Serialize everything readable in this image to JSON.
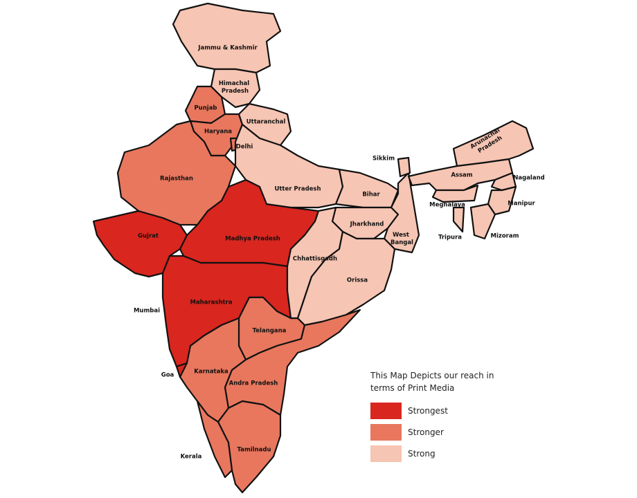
{
  "legend": {
    "title": "This Map Depicts our reach in terms of Print Media",
    "items": [
      {
        "label": "Strongest",
        "color": "#d9261f",
        "regions": [
          "Madhya Pradesh",
          "Gujrat",
          "Maharashtra",
          "Goa"
        ]
      },
      {
        "label": "Stronger",
        "color": "#e8775e",
        "regions": [
          "Punjab",
          "Haryana",
          "Delhi",
          "Rajasthan",
          "Telangana",
          "Karnataka",
          "Andra Pradesh",
          "Tamilnadu",
          "Kerala"
        ]
      },
      {
        "label": "Strong",
        "color": "#f6c5b3",
        "regions": [
          "Jammu & Kashmir",
          "Himachal Pradesh",
          "Uttaranchal",
          "Utter Pradesh",
          "Bihar",
          "Jharkhand",
          "West Bangal",
          "Chhattisgadh",
          "Orissa",
          "Sikkim",
          "Assam",
          "Arunachal Pradesh",
          "Nagaland",
          "Meghalaya",
          "Manipur",
          "Tripura",
          "Mizoram"
        ]
      }
    ]
  },
  "other_labels": [
    "Mumbai"
  ]
}
